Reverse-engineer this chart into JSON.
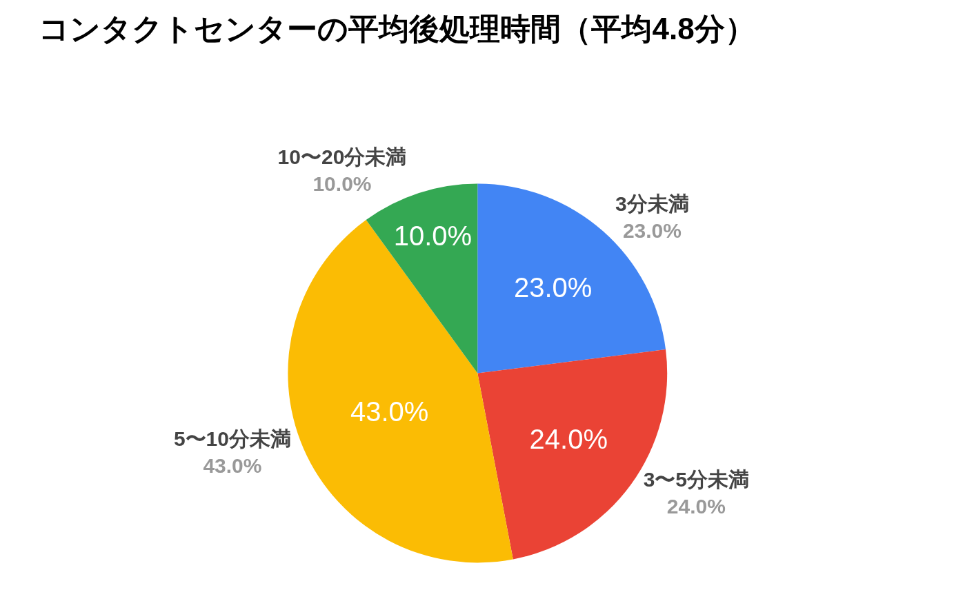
{
  "chart_data": {
    "type": "pie",
    "title": "コンタクトセンターの平均後処理時間（平均4.8分）",
    "categories": [
      "3分未満",
      "3〜5分未満",
      "5〜10分未満",
      "10〜20分未満"
    ],
    "values": [
      23.0,
      24.0,
      43.0,
      10.0
    ],
    "colors": [
      "#4285f4",
      "#ea4335",
      "#fbbc04",
      "#34a853"
    ],
    "value_labels": [
      "23.0%",
      "24.0%",
      "43.0%",
      "10.0%"
    ]
  }
}
